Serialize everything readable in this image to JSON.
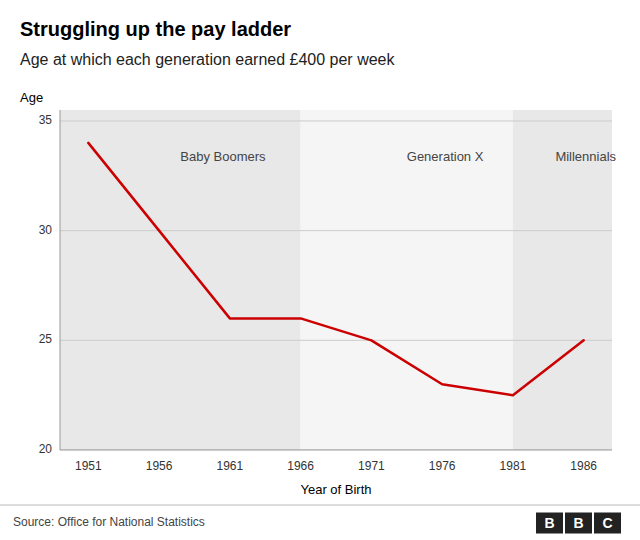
{
  "chart_data": {
    "type": "line",
    "title": "Struggling up the pay ladder",
    "subtitle": "Age at which each generation earned £400 per week",
    "source": "Source: Office for National Statistics",
    "logo": "BBC",
    "x_label": "Year of Birth",
    "y_label": "Age",
    "x": [
      1951,
      1956,
      1961,
      1966,
      1971,
      1976,
      1981,
      1986
    ],
    "values": [
      34,
      30,
      26,
      26,
      25,
      23,
      22.5,
      25
    ],
    "color": "#cc0000",
    "xlim": [
      1949,
      1988
    ],
    "ylim": [
      20,
      35.5
    ],
    "xticks": [
      1951,
      1956,
      1961,
      1966,
      1971,
      1976,
      1981,
      1986
    ],
    "yticks": [
      20,
      25,
      30,
      35
    ],
    "grid": true,
    "bands": [
      {
        "start": 1949,
        "end": 1966,
        "color": "#e8e8e8"
      },
      {
        "start": 1966,
        "end": 1981,
        "color": "#f5f5f5"
      },
      {
        "start": 1981,
        "end": 1988,
        "color": "#e8e8e8"
      }
    ],
    "annotations": [
      {
        "text": "Baby Boomers",
        "x": 1957.5,
        "y": 33.6
      },
      {
        "text": "Generation X",
        "x": 1973.5,
        "y": 33.6
      },
      {
        "text": "Millennials",
        "x": 1984.0,
        "y": 33.6
      }
    ]
  }
}
